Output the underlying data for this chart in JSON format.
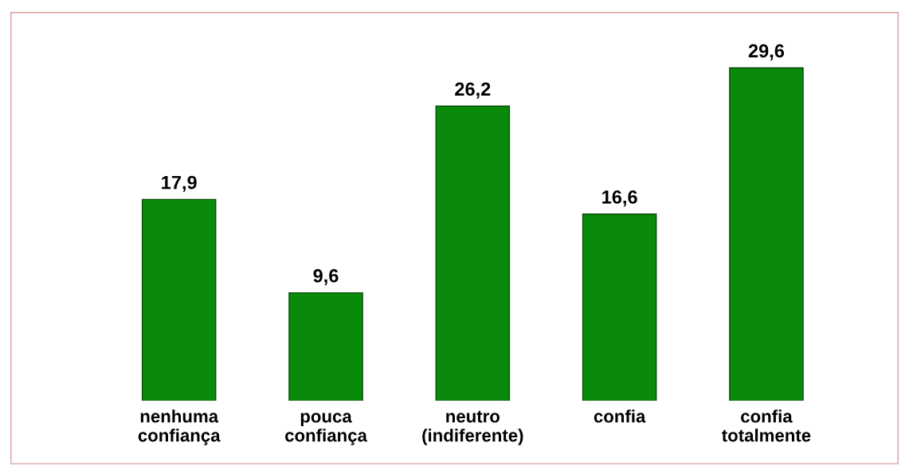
{
  "chart_data": {
    "type": "bar",
    "categories": [
      "nenhuma\nconfiança",
      "pouca\nconfiança",
      "neutro\n(indiferente)",
      "confia",
      "confia\ntotalmente"
    ],
    "values": [
      17.9,
      9.6,
      26.2,
      16.6,
      29.6
    ],
    "value_labels": [
      "17,9",
      "9,6",
      "26,2",
      "16,6",
      "29,6"
    ],
    "color": "#0a8a0a"
  }
}
